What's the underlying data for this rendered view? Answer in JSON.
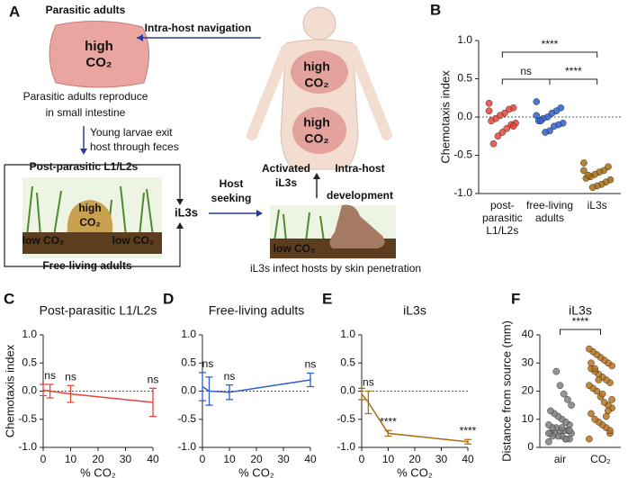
{
  "panel_a": {
    "texts": [
      "A",
      "Parasitic adults",
      "high",
      "CO₂",
      "Intra-host navigation",
      "Parasitic adults reproduce",
      "in small intestine",
      "Young larvae exit",
      "host through feces",
      "Post-parasitic L1/L2s",
      "high",
      "CO₂",
      "low CO₂",
      "low CO₂",
      "Free-living adults",
      "iL3s",
      "Host",
      "seeking",
      "Activated",
      "iL3s",
      "Intra-host",
      "development",
      "low CO₂",
      "iL3s infect hosts by skin penetration",
      "high",
      "CO₂",
      "high",
      "CO₂"
    ]
  },
  "chart_data": [
    {
      "type": "strip",
      "panel": "B",
      "ylabel": "Chemotaxis index",
      "categories": [
        "post-parasitic L1/L2s",
        "free-living adults",
        "iL3s"
      ],
      "groups": [
        {
          "color": "#e8443a",
          "values": [
            0.18,
            0.12,
            0.1,
            0.05,
            0.02,
            -0.02,
            -0.05,
            -0.08,
            -0.1,
            -0.15,
            -0.2,
            -0.25,
            -0.35,
            0.08,
            -0.12
          ]
        },
        {
          "color": "#2f5fd0",
          "values": [
            0.2,
            0.12,
            0.08,
            0.05,
            0.0,
            -0.02,
            -0.05,
            -0.08,
            -0.1,
            -0.12,
            -0.18,
            -0.2,
            -0.05,
            0.02
          ]
        },
        {
          "color": "#a86d12",
          "values": [
            -0.6,
            -0.65,
            -0.7,
            -0.72,
            -0.75,
            -0.78,
            -0.8,
            -0.82,
            -0.85,
            -0.88,
            -0.9,
            -0.92,
            -0.76,
            -0.7
          ]
        }
      ],
      "annotations": [
        "****",
        "ns",
        "****"
      ],
      "ylim": [
        -1,
        1
      ],
      "yticks": [
        {
          "value": -1,
          "label": "-1.0"
        },
        {
          "value": -0.5,
          "label": "-0.5"
        },
        {
          "value": 0,
          "label": "0.0"
        },
        {
          "value": 0.5,
          "label": "0.5"
        },
        {
          "value": 1,
          "label": "1.0"
        }
      ],
      "zero_line": true
    },
    {
      "type": "line",
      "panel": "C",
      "title": "Post-parasitic L1/L2s",
      "ylabel": "Chemotaxis index",
      "xlabel": "% CO₂",
      "color": "#e8443a",
      "x": [
        0,
        2.5,
        10,
        40
      ],
      "values": [
        0.02,
        0.0,
        -0.05,
        -0.2
      ],
      "errors": [
        0.1,
        0.12,
        0.15,
        0.25
      ],
      "point_labels": [
        null,
        "ns",
        "ns",
        "ns"
      ],
      "xlim": [
        0,
        40
      ],
      "xticks": [
        0,
        10,
        20,
        30,
        40
      ],
      "ylim": [
        -1,
        1
      ],
      "yticks": [
        {
          "value": -1,
          "label": "-1.0"
        },
        {
          "value": -0.5,
          "label": "-0.5"
        },
        {
          "value": 0,
          "label": "0.0"
        },
        {
          "value": 0.5,
          "label": "0.5"
        },
        {
          "value": 1,
          "label": "1.0"
        }
      ],
      "zero_line": true
    },
    {
      "type": "line",
      "panel": "D",
      "title": "Free-living adults",
      "xlabel": "% CO₂",
      "color": "#2f5fd0",
      "x": [
        0,
        2.5,
        10,
        40
      ],
      "values": [
        0.08,
        0.0,
        -0.02,
        0.2
      ],
      "errors": [
        0.25,
        0.25,
        0.13,
        0.12
      ],
      "point_labels": [
        "ns",
        null,
        "ns",
        "ns"
      ],
      "xlim": [
        0,
        40
      ],
      "xticks": [
        0,
        10,
        20,
        30,
        40
      ],
      "ylim": [
        -1,
        1
      ],
      "yticks": [
        {
          "value": -1,
          "label": "-1.0"
        },
        {
          "value": -0.5,
          "label": "-0.5"
        },
        {
          "value": 0,
          "label": "0.0"
        },
        {
          "value": 0.5,
          "label": "0.5"
        },
        {
          "value": 1,
          "label": "1.0"
        }
      ],
      "zero_line": true
    },
    {
      "type": "line",
      "panel": "E",
      "title": "iL3s",
      "xlabel": "% CO₂",
      "color": "#a86d12",
      "x": [
        0,
        2.5,
        10,
        40
      ],
      "values": [
        -0.05,
        -0.2,
        -0.75,
        -0.9
      ],
      "errors": [
        0.1,
        0.2,
        0.05,
        0.04
      ],
      "point_labels": [
        null,
        "ns",
        "****",
        "****"
      ],
      "xlim": [
        0,
        40
      ],
      "xticks": [
        0,
        10,
        20,
        30,
        40
      ],
      "ylim": [
        -1,
        1
      ],
      "yticks": [
        {
          "value": -1,
          "label": "-1.0"
        },
        {
          "value": -0.5,
          "label": "-0.5"
        },
        {
          "value": 0,
          "label": "0.0"
        },
        {
          "value": 0.5,
          "label": "0.5"
        },
        {
          "value": 1,
          "label": "1.0"
        }
      ],
      "zero_line": true
    },
    {
      "type": "strip",
      "panel": "F",
      "title": "iL3s",
      "ylabel": "Distance from source (mm)",
      "categories": [
        "air",
        "CO₂"
      ],
      "groups": [
        {
          "color": "#808080",
          "values": [
            2,
            3,
            3,
            4,
            4,
            5,
            5,
            5,
            6,
            6,
            6,
            7,
            7,
            8,
            8,
            9,
            10,
            11,
            12,
            13,
            15,
            17,
            19,
            22,
            27,
            4,
            5,
            6,
            3,
            7
          ]
        },
        {
          "color": "#b8741a",
          "values": [
            3,
            5,
            7,
            8,
            9,
            10,
            12,
            14,
            15,
            16,
            18,
            20,
            21,
            22,
            23,
            24,
            25,
            26,
            27,
            28,
            29,
            30,
            31,
            32,
            33,
            34,
            35,
            6,
            11,
            19,
            24,
            28,
            30,
            17,
            13
          ]
        }
      ],
      "annotations": [
        "****"
      ],
      "ylim": [
        0,
        40
      ],
      "yticks": [
        0,
        10,
        20,
        30,
        40
      ],
      "zero_line": false
    }
  ]
}
